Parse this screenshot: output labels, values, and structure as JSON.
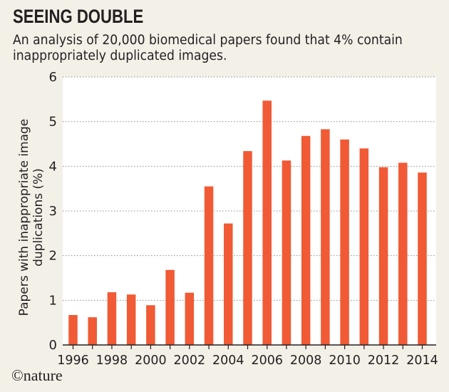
{
  "title": "SEEING DOUBLE",
  "subtitle": "An analysis of 20,000 biomedical papers found that 4% contain inappropriately duplicated images.",
  "brand": "©nature",
  "colors": {
    "bar": "#f05a35",
    "plot_bg": "#ffffff",
    "page_bg": "#f3f0e8",
    "grid": "#8c8c8c"
  },
  "chart_data": {
    "type": "bar",
    "title": "SEEING DOUBLE",
    "xlabel": "",
    "ylabel": "Papers with inappropriate image duplications (%)",
    "ylim": [
      0,
      6
    ],
    "yticks": [
      0,
      1,
      2,
      3,
      4,
      5,
      6
    ],
    "grid": "horizontal-dotted",
    "categories": [
      "1996",
      "1997",
      "1998",
      "1999",
      "2000",
      "2001",
      "2002",
      "2003",
      "2004",
      "2005",
      "2006",
      "2007",
      "2008",
      "2009",
      "2010",
      "2011",
      "2012",
      "2013",
      "2014"
    ],
    "xtick_labels": [
      "1996",
      "1998",
      "2000",
      "2002",
      "2004",
      "2006",
      "2008",
      "2010",
      "2012",
      "2014"
    ],
    "values": [
      0.67,
      0.62,
      1.18,
      1.13,
      0.89,
      1.68,
      1.17,
      3.55,
      2.72,
      4.34,
      5.47,
      4.13,
      4.68,
      4.83,
      4.6,
      4.4,
      3.98,
      4.08,
      3.86
    ]
  }
}
